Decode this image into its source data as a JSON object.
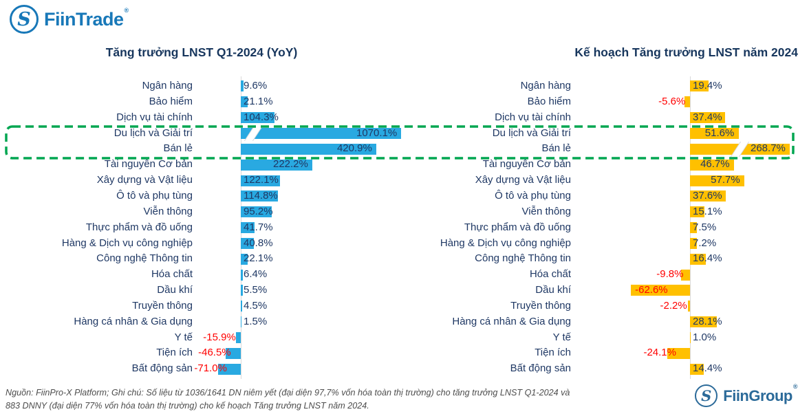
{
  "header": {
    "fiintrade_logo_text": "FiinTrade",
    "logo_glyph": "S",
    "registered_mark": "®"
  },
  "footer": {
    "fiingroup_logo_text": "FiinGroup",
    "logo_glyph": "S",
    "registered_mark": "®",
    "note_line1": "Nguồn: FiinPro-X Platform; Ghi chú: Số liệu từ 1036/1641 DN niêm yết (đại diện 97,7% vốn hóa toàn thị trường) cho tăng trưởng LNST Q1-2024 và",
    "note_line2": "883 DNNY (đại diện 77% vốn hóa toàn thị trường) cho kế hoạch Tăng trưởng LNST năm 2024."
  },
  "highlight": {
    "rows": [
      "Du lịch và Giải trí",
      "Bán lẻ"
    ],
    "color": "#00A651",
    "style": "dashed rounded rectangle spanning both charts"
  },
  "chart_data": [
    {
      "type": "bar",
      "orientation": "horizontal",
      "title": "Tăng trưởng LNST Q1-2024 (YoY)",
      "unit": "%",
      "bar_color": "#29A9E1",
      "positive_label_color": "#1F3864",
      "negative_label_color": "#FF0000",
      "categories": [
        "Ngân hàng",
        "Bảo hiểm",
        "Dịch vụ tài chính",
        "Du lịch và Giải trí",
        "Bán lẻ",
        "Tài nguyên Cơ bản",
        "Xây dựng và Vật liệu",
        "Ô tô và phụ tùng",
        "Viễn thông",
        "Thực phẩm và đồ uống",
        "Hàng & Dịch vụ công nghiệp",
        "Công nghệ Thông tin",
        "Hóa chất",
        "Dầu khí",
        "Truyền thông",
        "Hàng cá nhân & Gia dụng",
        "Y tế",
        "Tiện ích",
        "Bất động sản"
      ],
      "values": [
        9.6,
        21.1,
        104.3,
        1070.1,
        420.9,
        222.2,
        122.1,
        114.8,
        95.2,
        41.7,
        40.8,
        22.1,
        6.4,
        5.5,
        4.5,
        1.5,
        -15.9,
        -46.5,
        -71.0
      ],
      "axis_break": {
        "applies_to": "Du lịch và Giải trí",
        "value": 1070.1
      }
    },
    {
      "type": "bar",
      "orientation": "horizontal",
      "title": "Kế hoạch Tăng trưởng LNST năm 2024",
      "unit": "%",
      "bar_color": "#FFC000",
      "positive_label_color": "#1F3864",
      "negative_label_color": "#FF0000",
      "categories": [
        "Ngân hàng",
        "Bảo hiểm",
        "Dịch vụ tài chính",
        "Du lịch và Giải trí",
        "Bán lẻ",
        "Tài nguyên Cơ bản",
        "Xây dựng và Vật liệu",
        "Ô tô và phụ tùng",
        "Viễn thông",
        "Thực phẩm và đồ uống",
        "Hàng & Dịch vụ công nghiệp",
        "Công nghệ Thông tin",
        "Hóa chất",
        "Dầu khí",
        "Truyền thông",
        "Hàng cá nhân & Gia dụng",
        "Y tế",
        "Tiện ích",
        "Bất động sản"
      ],
      "values": [
        19.4,
        -5.6,
        37.4,
        51.6,
        268.7,
        46.7,
        57.7,
        37.6,
        15.1,
        7.5,
        7.2,
        16.4,
        -9.8,
        -62.6,
        -2.2,
        28.1,
        1.0,
        -24.1,
        14.4
      ],
      "axis_break": {
        "applies_to": "Bán lẻ",
        "value": 268.7
      }
    }
  ]
}
